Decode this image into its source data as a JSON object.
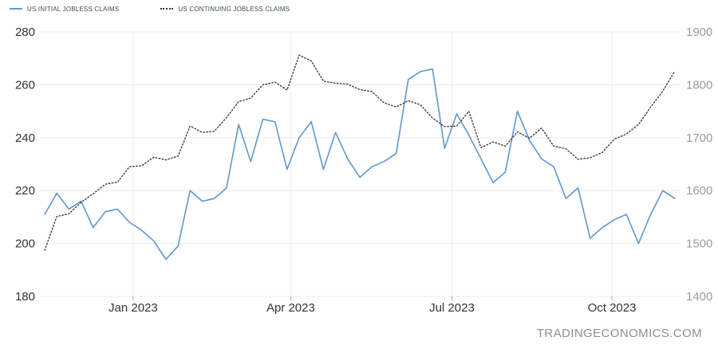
{
  "legend": {
    "items": [
      {
        "label": "US INITIAL JOBLESS CLAIMS",
        "color": "#6097ce",
        "line_style": "solid"
      },
      {
        "label": "US CONTINUING JOBLESS CLAIMS",
        "color": "#333333",
        "line_style": "dotted"
      }
    ]
  },
  "footer": {
    "brand": "TRADINGECONOMICS.COM"
  },
  "colors": {
    "background": "#ffffff",
    "grid": "#ececec",
    "tick": "#aaaaaa",
    "axis_left_text": "#333333",
    "axis_right_text": "#9b9b9b",
    "x_axis_text": "#333333",
    "initial_claims_line": "#6097ce",
    "continuing_claims_line": "#333333",
    "footer_text": "#8f8f8f"
  },
  "chart_data": {
    "type": "line",
    "title": "",
    "xlabel": "",
    "ylabel_left": "",
    "ylabel_right": "",
    "grid": true,
    "legend_position": "top-left",
    "x_axis": {
      "tick_labels": [
        "Jan 2023",
        "Apr 2023",
        "Jul 2023",
        "Oct 2023"
      ],
      "tick_indices": [
        7.3,
        20.3,
        33.6,
        46.8
      ]
    },
    "y_left": {
      "ticks": [
        280,
        260,
        240,
        220,
        200,
        180
      ],
      "range": [
        180,
        280
      ]
    },
    "y_right": {
      "ticks": [
        1900,
        1800,
        1700,
        1600,
        1500,
        1400
      ],
      "range": [
        1400,
        1900
      ]
    },
    "series": [
      {
        "name": "US INITIAL JOBLESS CLAIMS",
        "axis": "left",
        "line": "solid",
        "color": "#6097ce",
        "values": [
          211,
          219,
          213,
          216,
          206,
          212,
          213,
          208,
          205,
          201,
          194,
          199,
          220,
          216,
          217,
          221,
          245,
          231,
          247,
          246,
          228,
          240,
          246,
          228,
          242,
          232,
          225,
          229,
          231,
          234,
          262,
          265,
          266,
          236,
          249,
          241,
          232,
          223,
          227,
          250,
          239,
          232,
          229,
          217,
          221,
          202,
          206,
          209,
          211,
          200,
          211,
          220,
          217
        ]
      },
      {
        "name": "US CONTINUING JOBLESS CLAIMS",
        "axis": "right",
        "line": "dotted",
        "color": "#333333",
        "values": [
          1487,
          1551,
          1556,
          1578,
          1594,
          1612,
          1616,
          1645,
          1647,
          1663,
          1658,
          1665,
          1722,
          1710,
          1712,
          1738,
          1768,
          1775,
          1800,
          1805,
          1790,
          1856,
          1845,
          1807,
          1803,
          1801,
          1791,
          1787,
          1766,
          1758,
          1770,
          1762,
          1737,
          1721,
          1722,
          1750,
          1681,
          1692,
          1684,
          1711,
          1699,
          1718,
          1684,
          1679,
          1659,
          1662,
          1672,
          1697,
          1707,
          1725,
          1758,
          1788,
          1826
        ]
      }
    ]
  }
}
